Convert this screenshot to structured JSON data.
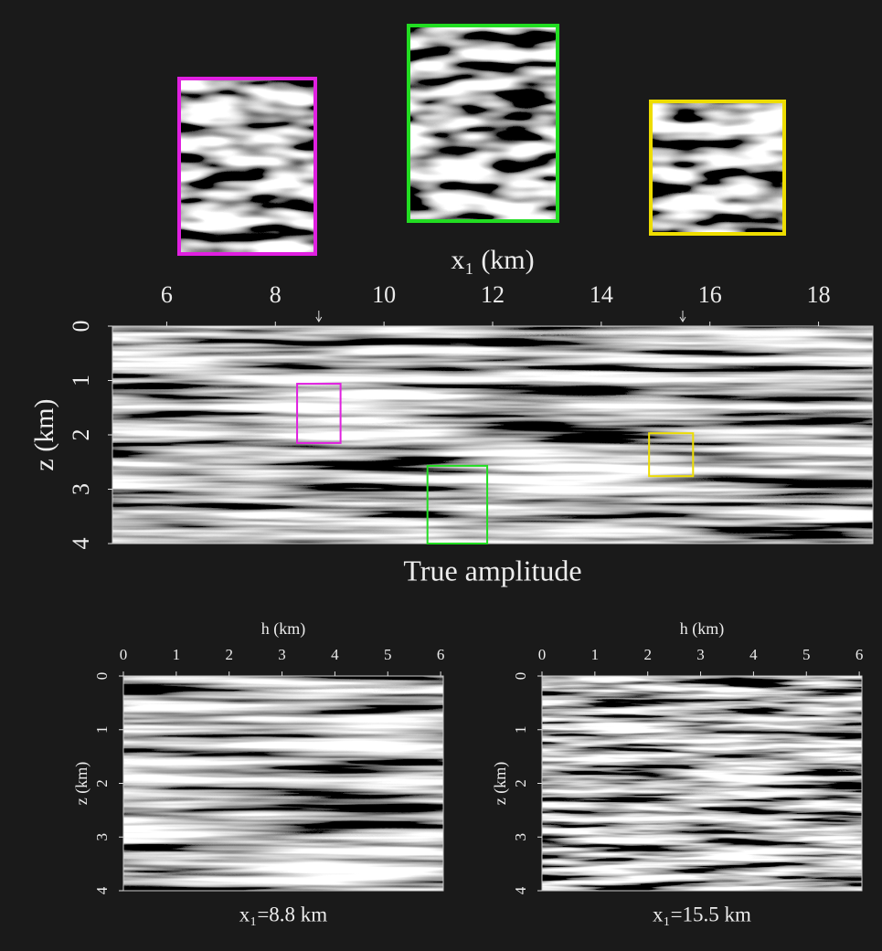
{
  "main": {
    "xlabel": "x₁ (km)",
    "ylabel": "z (km)",
    "caption": "True amplitude",
    "xlim": [
      5,
      19
    ],
    "ylim": [
      0,
      4
    ],
    "xticks": [
      6,
      8,
      10,
      12,
      14,
      16,
      18
    ],
    "yticks": [
      0,
      1,
      2,
      3,
      4
    ],
    "arrows": [
      8.8,
      15.5
    ],
    "boxes": [
      {
        "color": "#e020e0",
        "x": [
          8.4,
          9.2
        ],
        "z": [
          1.06,
          2.15
        ]
      },
      {
        "color": "#22dd22",
        "x": [
          10.8,
          11.9
        ],
        "z": [
          2.57,
          4
        ]
      },
      {
        "color": "#eedd00",
        "x": [
          14.88,
          15.69
        ],
        "z": [
          1.97,
          2.76
        ]
      }
    ]
  },
  "panels": [
    {
      "xlabel": "h (km)",
      "ylabel": "z (km)",
      "caption": "x₁=8.8 km",
      "xlim": [
        0,
        6.05
      ],
      "ylim": [
        0,
        4
      ],
      "xticks": [
        0,
        1,
        2,
        3,
        4,
        5,
        6
      ],
      "yticks": [
        0,
        1,
        2,
        3,
        4
      ]
    },
    {
      "xlabel": "h (km)",
      "ylabel": "z (km)",
      "caption": "x₁=15.5 km",
      "xlim": [
        0,
        6.05
      ],
      "ylim": [
        0,
        4
      ],
      "xticks": [
        0,
        1,
        2,
        3,
        4,
        5,
        6
      ],
      "yticks": [
        0,
        1,
        2,
        3,
        4
      ]
    }
  ]
}
